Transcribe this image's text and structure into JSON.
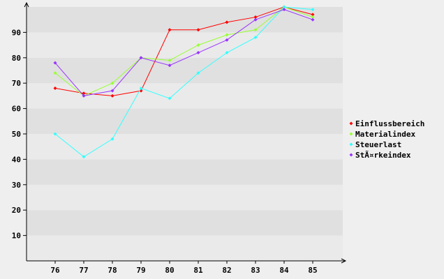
{
  "chart_data": {
    "type": "line",
    "title": "",
    "xlabel": "",
    "ylabel": "",
    "categories": [
      "76",
      "77",
      "78",
      "79",
      "80",
      "81",
      "82",
      "83",
      "84",
      "85"
    ],
    "yticks": [
      10,
      20,
      30,
      40,
      50,
      60,
      70,
      80,
      90
    ],
    "ylim": [
      0,
      100
    ],
    "grid": "alternating horizontal bands",
    "legend_position": "right",
    "series": [
      {
        "name": "Einflussbereich",
        "color": "#ff0000",
        "values": [
          68,
          66,
          65,
          67,
          91,
          91,
          94,
          96,
          100,
          97
        ]
      },
      {
        "name": "Materialindex",
        "color": "#99ff33",
        "values": [
          74,
          65,
          70,
          80,
          79,
          85,
          89,
          91,
          100,
          96
        ]
      },
      {
        "name": "Steuerlast",
        "color": "#33ffff",
        "values": [
          50,
          41,
          48,
          68,
          64,
          74,
          82,
          88,
          100,
          99
        ]
      },
      {
        "name": "StÃ¤rkeindex",
        "color": "#9933ff",
        "values": [
          78,
          65,
          67,
          80,
          77,
          82,
          87,
          95,
          99,
          95
        ]
      }
    ]
  }
}
